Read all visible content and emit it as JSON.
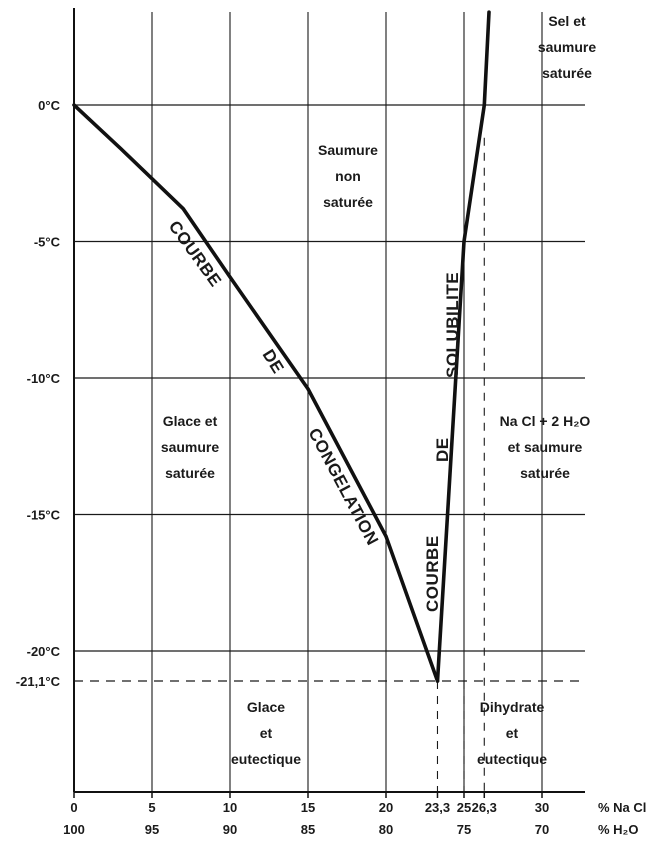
{
  "chart_data": {
    "type": "line",
    "title": "",
    "x_axis": {
      "label_top": "% Na Cl",
      "label_bottom": "% H₂O",
      "range": [
        0,
        33
      ],
      "ticks": [
        {
          "value": 0,
          "top": "0",
          "bottom": "100"
        },
        {
          "value": 5,
          "top": "5",
          "bottom": "95"
        },
        {
          "value": 10,
          "top": "10",
          "bottom": "90"
        },
        {
          "value": 15,
          "top": "15",
          "bottom": "85"
        },
        {
          "value": 20,
          "top": "20",
          "bottom": "80"
        },
        {
          "value": 23.3,
          "top": "23,3",
          "bottom": ""
        },
        {
          "value": 25,
          "top": "25",
          "bottom": "75"
        },
        {
          "value": 26.3,
          "top": "26,3",
          "bottom": ""
        },
        {
          "value": 30,
          "top": "30",
          "bottom": "70"
        }
      ]
    },
    "y_axis": {
      "range": [
        -25,
        3.5
      ],
      "ticks": [
        {
          "value": 0,
          "label": "0°C"
        },
        {
          "value": -5,
          "label": "-5°C"
        },
        {
          "value": -10,
          "label": "-10°C"
        },
        {
          "value": -15,
          "label": "-15°C"
        },
        {
          "value": -20,
          "label": "-20°C"
        },
        {
          "value": -21.1,
          "label": "-21,1°C"
        }
      ]
    },
    "grid": true,
    "series": [
      {
        "name": "",
        "points": [
          [
            0,
            0
          ],
          [
            3,
            -1.6
          ],
          [
            7,
            -3.8
          ],
          [
            10,
            -6.3
          ],
          [
            15,
            -10.4
          ],
          [
            20,
            -15.8
          ],
          [
            23.3,
            -21.1
          ]
        ]
      },
      {
        "name": "",
        "points": [
          [
            23.3,
            -21.1
          ],
          [
            25,
            -5.0
          ],
          [
            26.3,
            0
          ],
          [
            26.6,
            3.4
          ]
        ]
      }
    ],
    "eutectic": {
      "x": 23.3,
      "y": -21.1
    },
    "dashed_verticals": [
      23.3,
      25,
      26.3
    ],
    "dashed_horizontal": -21.1,
    "annotations": {
      "freezing_curve": [
        "COURBE",
        "DE",
        "CONGELATION"
      ],
      "solubility_curve": [
        "SOLUBILITE",
        "DE",
        "COURBE"
      ]
    },
    "regions": [
      {
        "id": "sel-saumure",
        "lines": [
          "Sel et",
          "saumure",
          "saturée"
        ]
      },
      {
        "id": "saumure-non-saturee",
        "lines": [
          "Saumure",
          "non",
          "saturée"
        ]
      },
      {
        "id": "glace-saumure",
        "lines": [
          "Glace et",
          "saumure",
          "saturée"
        ]
      },
      {
        "id": "nacl-dihydrate",
        "lines": [
          "Na Cl + 2 H₂O",
          "et saumure",
          "saturée"
        ]
      },
      {
        "id": "glace-eutectique",
        "lines": [
          "Glace",
          "et",
          "eutectique"
        ]
      },
      {
        "id": "dihydrate-eutectique",
        "lines": [
          "Dihydrate",
          "et",
          "eutectique"
        ]
      }
    ]
  }
}
